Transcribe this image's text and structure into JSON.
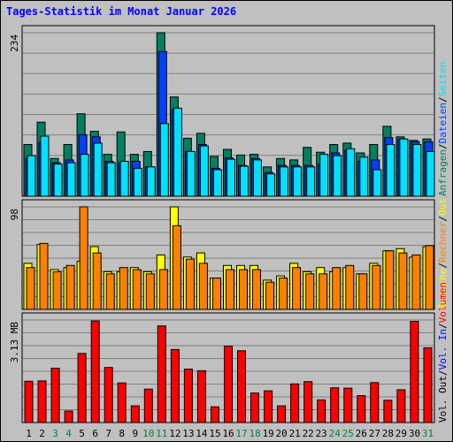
{
  "title": "Tages-Statistik im Monat Januar 2026",
  "colors": {
    "title": "#0000ff",
    "anfragen": "#008060",
    "dateien": "#0040ff",
    "seiten": "#00e0ff",
    "besuche": "#ffff00",
    "rechner": "#ff8000",
    "volumen": "#ff0000",
    "weekend_label": "#008040",
    "day_label": "#000000",
    "grid": "#808080",
    "plot_bg": "#c0c0c0"
  },
  "chart_data": [
    {
      "type": "bar",
      "ylabel_max": "234",
      "ylim": [
        0,
        234
      ],
      "legend": [
        {
          "text": "Anfragen",
          "color": "#008060"
        },
        {
          "text": "Dateien",
          "color": "#0040ff"
        },
        {
          "text": "Seiten",
          "color": "#00e0ff"
        }
      ],
      "legend_separators": [
        "/",
        "/"
      ],
      "series": [
        {
          "name": "Anfragen",
          "values": [
            74,
            106,
            54,
            74,
            118,
            93,
            60,
            92,
            60,
            64,
            234,
            142,
            83,
            90,
            57,
            67,
            59,
            60,
            42,
            54,
            52,
            70,
            63,
            74,
            76,
            62,
            74,
            100,
            85,
            80,
            82
          ]
        },
        {
          "name": "Dateien",
          "values": [
            54,
            77,
            48,
            52,
            88,
            85,
            50,
            48,
            50,
            42,
            207,
            124,
            64,
            74,
            40,
            55,
            44,
            54,
            34,
            44,
            44,
            44,
            46,
            62,
            66,
            50,
            52,
            84,
            82,
            78,
            78
          ]
        },
        {
          "name": "Seiten",
          "values": [
            58,
            86,
            46,
            48,
            60,
            76,
            48,
            50,
            40,
            42,
            104,
            126,
            64,
            72,
            38,
            53,
            43,
            52,
            32,
            42,
            42,
            42,
            60,
            58,
            68,
            56,
            38,
            74,
            82,
            74,
            64
          ]
        }
      ]
    },
    {
      "type": "bar",
      "ylabel_max": "98",
      "ylim": [
        0,
        98
      ],
      "legend": [
        {
          "text": "Besuche",
          "color": "#ffff00"
        },
        {
          "text": "Rechner",
          "color": "#ff8000"
        },
        {
          "text": "Out",
          "color": "#ffff00"
        }
      ],
      "legend_separators": [
        "/",
        "/"
      ],
      "series": [
        {
          "name": "Besuche",
          "values": [
            44,
            62,
            38,
            40,
            46,
            60,
            36,
            36,
            40,
            36,
            52,
            98,
            50,
            54,
            30,
            42,
            42,
            42,
            28,
            32,
            44,
            36,
            40,
            36,
            40,
            34,
            44,
            56,
            58,
            50,
            60
          ]
        },
        {
          "name": "Rechner",
          "values": [
            40,
            63,
            36,
            42,
            98,
            54,
            34,
            40,
            38,
            34,
            38,
            80,
            48,
            44,
            30,
            38,
            38,
            38,
            26,
            30,
            40,
            34,
            34,
            40,
            42,
            34,
            42,
            56,
            54,
            52,
            61
          ]
        }
      ]
    },
    {
      "type": "bar",
      "ylabel_max": "3.13 MB",
      "ylim": [
        0,
        3.13
      ],
      "legend": [
        {
          "text": "Vol. Out",
          "color": "#000000"
        },
        {
          "text": "Vol. In",
          "color": "#0000ff"
        },
        {
          "text": "Volumen",
          "color": "#ff0000"
        }
      ],
      "legend_separators": [
        "/",
        "/"
      ],
      "series": [
        {
          "name": "Volumen",
          "values": [
            1.26,
            1.27,
            1.66,
            0.35,
            2.11,
            3.1,
            1.68,
            1.21,
            0.51,
            1.02,
            2.95,
            2.23,
            1.63,
            1.58,
            0.48,
            2.33,
            2.19,
            0.9,
            0.97,
            0.51,
            1.18,
            1.25,
            0.69,
            1.06,
            1.05,
            0.82,
            1.22,
            0.68,
            1.0,
            3.09,
            2.28
          ]
        }
      ]
    }
  ],
  "days": [
    "1",
    "2",
    "3",
    "4",
    "5",
    "6",
    "7",
    "8",
    "9",
    "10",
    "11",
    "12",
    "13",
    "14",
    "15",
    "16",
    "17",
    "18",
    "19",
    "20",
    "21",
    "22",
    "23",
    "24",
    "25",
    "26",
    "27",
    "28",
    "29",
    "30",
    "31"
  ],
  "weekend_days": [
    "3",
    "4",
    "10",
    "11",
    "17",
    "18",
    "24",
    "25",
    "31"
  ]
}
